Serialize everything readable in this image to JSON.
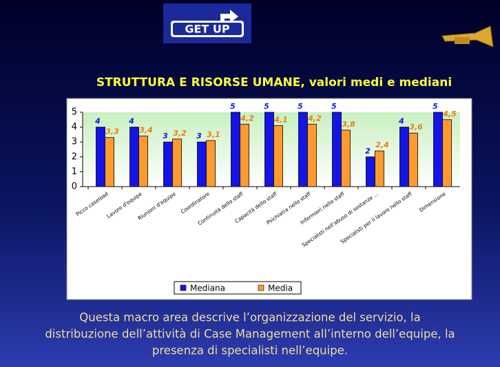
{
  "slide": {
    "logo": "GET UP",
    "description": [
      "Questa macro area descrive l’organizzazione del servizio, la",
      "distribuzione dell’attività di Case Management all’interno dell’equipe, la",
      "presenza di specialisti nell’equipe."
    ]
  },
  "chart_data": {
    "type": "bar",
    "title": "STRUTTURA E RISORSE UMANE, valori medi e mediani",
    "categories": [
      "Picco caseload",
      "Lavoro d'equipe",
      "Riunioni d'equipe",
      "Coordinatore",
      "Continuità dello staff",
      "Capacità dello staff",
      "Psichiatra nello staff",
      "Infermieri nello staff",
      "Specialisti nell'abuso di sostanze ...",
      "Specialisti per il lavoro nello staff",
      "Dimensione"
    ],
    "series": [
      {
        "name": "Mediana",
        "color": "#1414e6",
        "values": [
          4,
          4,
          3,
          3,
          5,
          5,
          5,
          5,
          2,
          4,
          5
        ]
      },
      {
        "name": "Media",
        "color": "#ff9a2e",
        "values": [
          3.3,
          3.4,
          3.2,
          3.1,
          4.2,
          4.1,
          4.2,
          3.8,
          2.4,
          3.6,
          4.5
        ],
        "value_labels": [
          "3,3",
          "3,4",
          "3,2",
          "3,1",
          "4,2",
          "4,1",
          "4,2",
          "3,8",
          "2,4",
          "3,6",
          "4,5"
        ]
      }
    ],
    "ylim": [
      0,
      5
    ],
    "yticks": [
      0,
      1,
      2,
      3,
      4,
      5
    ],
    "grid": false,
    "legend": "bottom"
  }
}
